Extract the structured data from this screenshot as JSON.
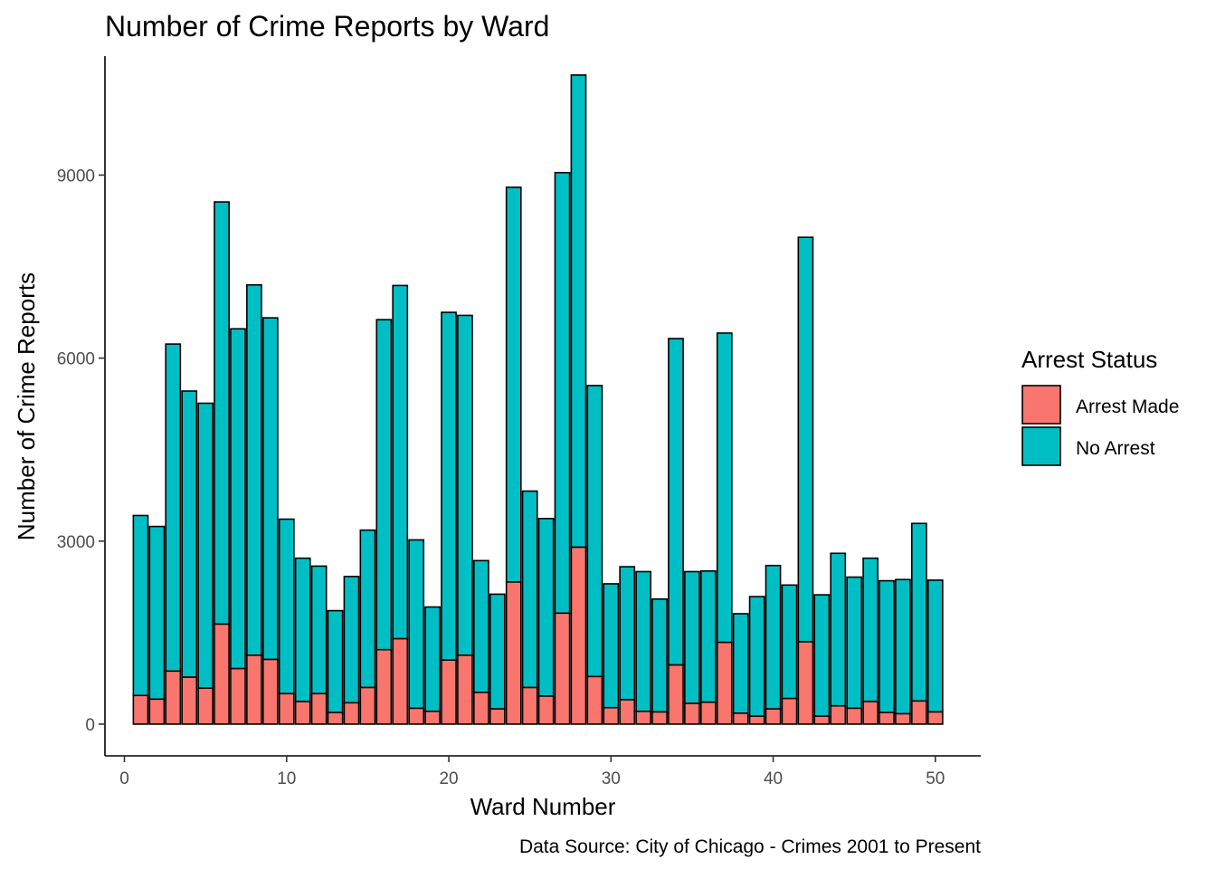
{
  "chart_data": {
    "type": "bar",
    "stacked": true,
    "title": "Number of Crime Reports by Ward",
    "xlabel": "Ward Number",
    "ylabel": "Number of Crime Reports",
    "caption": "Data Source: City of Chicago - Crimes 2001 to Present",
    "xlim": [
      -1.2,
      52.8
    ],
    "ylim": [
      -520,
      10950
    ],
    "x_ticks": [
      0,
      10,
      20,
      30,
      40,
      50
    ],
    "y_ticks": [
      0,
      3000,
      6000,
      9000
    ],
    "grid": false,
    "legend": {
      "title": "Arrest Status",
      "position": "right"
    },
    "categories": [
      1,
      2,
      3,
      4,
      5,
      6,
      7,
      8,
      9,
      10,
      11,
      12,
      13,
      14,
      15,
      16,
      17,
      18,
      19,
      20,
      21,
      22,
      23,
      24,
      25,
      26,
      27,
      28,
      29,
      30,
      31,
      32,
      33,
      34,
      35,
      36,
      37,
      38,
      39,
      40,
      41,
      42,
      43,
      44,
      45,
      46,
      47,
      48,
      49,
      50
    ],
    "totals": [
      3420,
      3240,
      6230,
      5460,
      5260,
      8560,
      6480,
      7200,
      6660,
      3360,
      2720,
      2590,
      1860,
      2420,
      3180,
      6630,
      7190,
      3020,
      1920,
      6750,
      6700,
      2680,
      2130,
      8800,
      3820,
      3370,
      9040,
      10640,
      5550,
      2300,
      2580,
      2500,
      2050,
      6320,
      2500,
      2510,
      6410,
      1810,
      2090,
      2600,
      2280,
      7980,
      2120,
      2800,
      2410,
      2720,
      2350,
      2370,
      3290,
      2360
    ],
    "series": [
      {
        "name": "Arrest Made",
        "color": "#F8766D",
        "values": [
          470,
          410,
          870,
          770,
          590,
          1640,
          910,
          1130,
          1060,
          500,
          370,
          500,
          190,
          350,
          600,
          1220,
          1400,
          260,
          210,
          1050,
          1130,
          520,
          250,
          2330,
          600,
          460,
          1820,
          2900,
          780,
          270,
          400,
          210,
          200,
          970,
          340,
          360,
          1340,
          180,
          130,
          250,
          420,
          1350,
          130,
          300,
          260,
          370,
          190,
          170,
          380,
          200
        ]
      },
      {
        "name": "No Arrest",
        "color": "#00BFC4",
        "values": [
          2950,
          2830,
          5360,
          4690,
          4670,
          6920,
          5570,
          6070,
          5600,
          2860,
          2350,
          2090,
          1670,
          2070,
          2580,
          5410,
          5790,
          2760,
          1710,
          5700,
          5570,
          2160,
          1880,
          6470,
          3220,
          2910,
          7220,
          7740,
          4770,
          2030,
          2180,
          2290,
          1850,
          5350,
          2160,
          2150,
          5070,
          1630,
          1960,
          2350,
          1860,
          6630,
          1990,
          2500,
          2150,
          2350,
          2160,
          2200,
          2910,
          2160
        ]
      }
    ]
  }
}
